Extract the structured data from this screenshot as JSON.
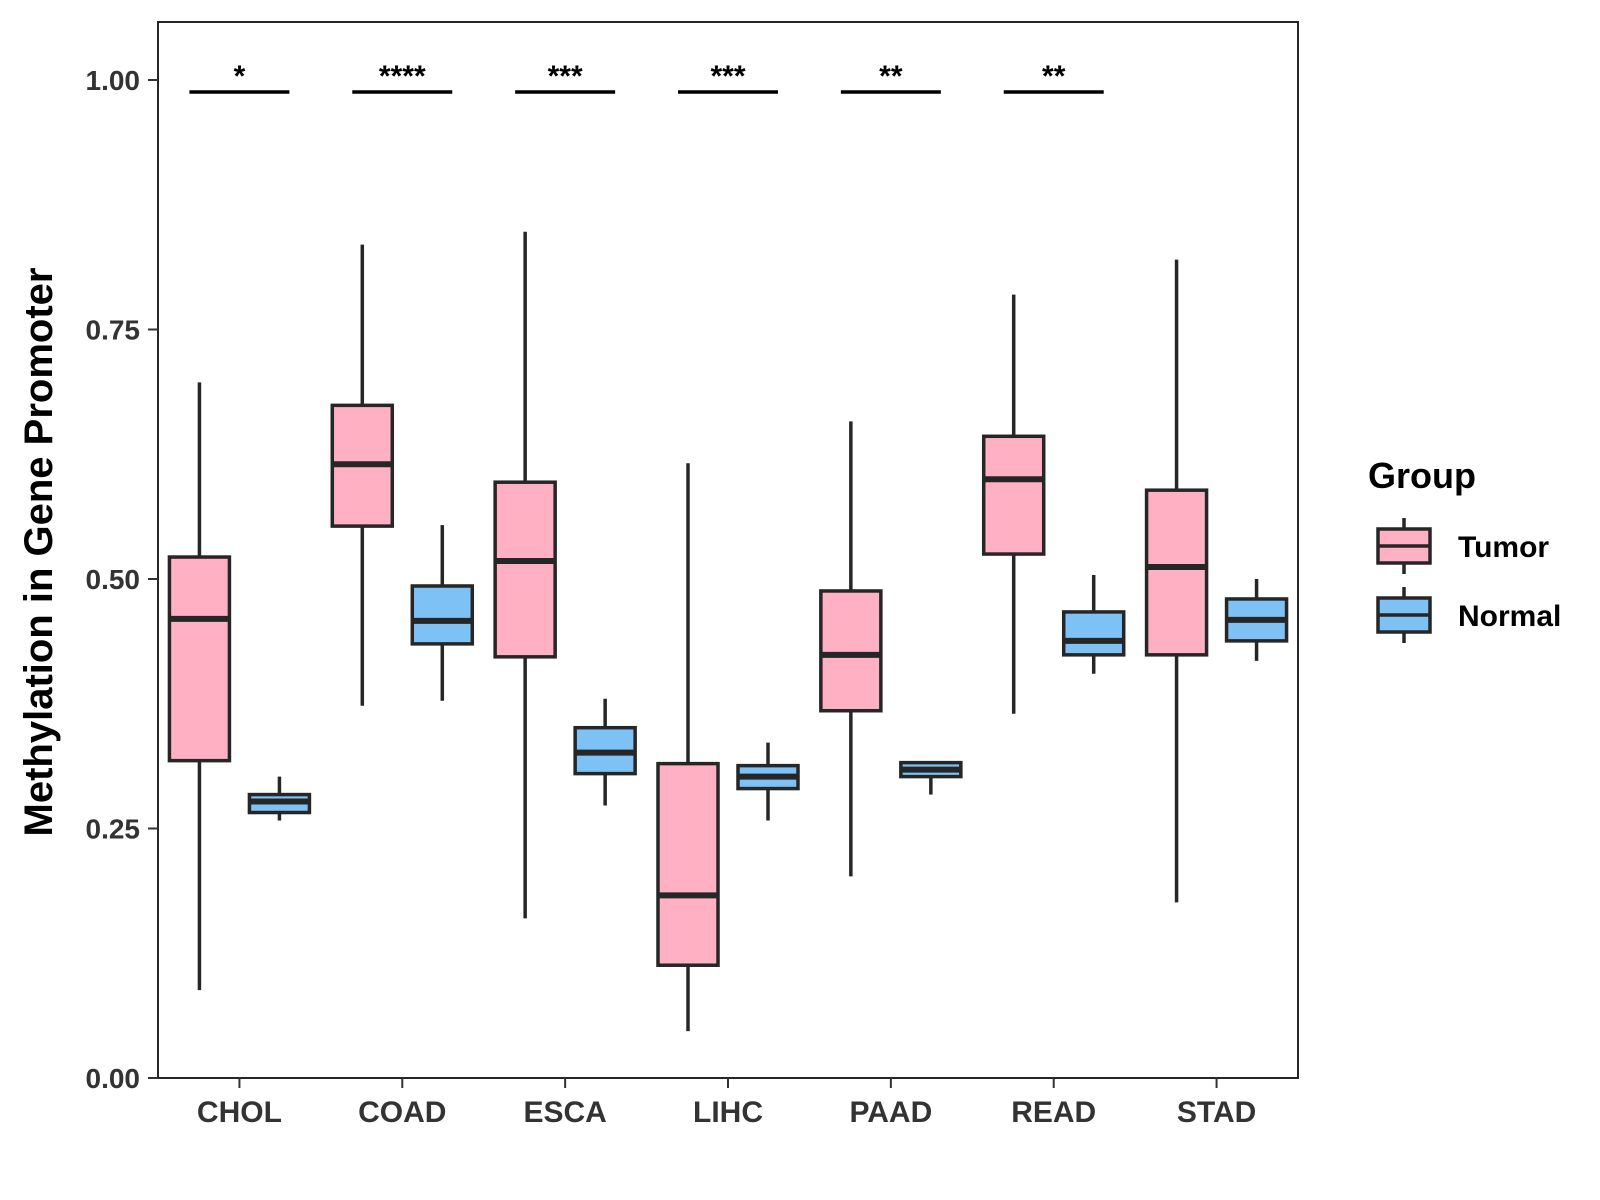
{
  "colors": {
    "tumor": "#FFB0C3",
    "normal": "#7DC1F5",
    "outline": "#262626",
    "axis": "#333333",
    "background": "#ffffff"
  },
  "chart_data": {
    "type": "boxplot",
    "title": "",
    "xlabel": "",
    "ylabel": "Methylation in Gene Promoter",
    "ylim": [
      0.0,
      1.05
    ],
    "yticks": [
      0.0,
      0.25,
      0.5,
      0.75,
      1.0
    ],
    "ytick_labels": [
      "0.00",
      "0.25",
      "0.50",
      "0.75",
      "1.00"
    ],
    "categories": [
      "CHOL",
      "COAD",
      "ESCA",
      "LIHC",
      "PAAD",
      "READ",
      "STAD"
    ],
    "legend": {
      "title": "Group",
      "position": "right",
      "entries": [
        "Tumor",
        "Normal"
      ]
    },
    "series": [
      {
        "name": "Tumor",
        "boxes": [
          {
            "min": 0.088,
            "q1": 0.318,
            "median": 0.46,
            "q3": 0.522,
            "max": 0.697
          },
          {
            "min": 0.373,
            "q1": 0.553,
            "median": 0.615,
            "q3": 0.674,
            "max": 0.835
          },
          {
            "min": 0.16,
            "q1": 0.422,
            "median": 0.518,
            "q3": 0.597,
            "max": 0.848
          },
          {
            "min": 0.047,
            "q1": 0.113,
            "median": 0.183,
            "q3": 0.315,
            "max": 0.616
          },
          {
            "min": 0.202,
            "q1": 0.368,
            "median": 0.424,
            "q3": 0.488,
            "max": 0.658
          },
          {
            "min": 0.365,
            "q1": 0.525,
            "median": 0.6,
            "q3": 0.643,
            "max": 0.785
          },
          {
            "min": 0.176,
            "q1": 0.424,
            "median": 0.512,
            "q3": 0.589,
            "max": 0.82
          }
        ]
      },
      {
        "name": "Normal",
        "boxes": [
          {
            "min": 0.258,
            "q1": 0.266,
            "median": 0.277,
            "q3": 0.284,
            "max": 0.302
          },
          {
            "min": 0.378,
            "q1": 0.435,
            "median": 0.458,
            "q3": 0.493,
            "max": 0.554
          },
          {
            "min": 0.273,
            "q1": 0.305,
            "median": 0.326,
            "q3": 0.351,
            "max": 0.38
          },
          {
            "min": 0.258,
            "q1": 0.29,
            "median": 0.302,
            "q3": 0.313,
            "max": 0.336
          },
          {
            "min": 0.284,
            "q1": 0.302,
            "median": 0.309,
            "q3": 0.316,
            "max": 0.316
          },
          {
            "min": 0.405,
            "q1": 0.424,
            "median": 0.438,
            "q3": 0.467,
            "max": 0.504
          },
          {
            "min": 0.418,
            "q1": 0.438,
            "median": 0.459,
            "q3": 0.48,
            "max": 0.5
          }
        ]
      }
    ],
    "significance": [
      {
        "category": "CHOL",
        "label": "*"
      },
      {
        "category": "COAD",
        "label": "****"
      },
      {
        "category": "ESCA",
        "label": "***"
      },
      {
        "category": "LIHC",
        "label": "***"
      },
      {
        "category": "PAAD",
        "label": "**"
      },
      {
        "category": "READ",
        "label": "**"
      }
    ],
    "significance_y": 0.988
  }
}
